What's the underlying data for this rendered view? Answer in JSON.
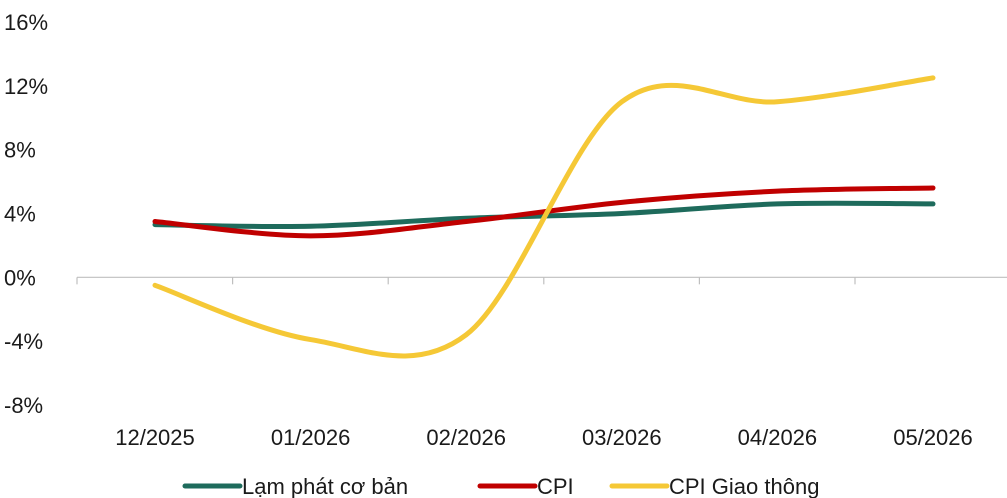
{
  "chart_data": {
    "type": "line",
    "title": "",
    "xlabel": "",
    "ylabel": "",
    "categories": [
      "12/2025",
      "01/2026",
      "02/2026",
      "03/2026",
      "04/2026",
      "05/2026"
    ],
    "ylim": [
      -8,
      16
    ],
    "y_ticks": [
      -8,
      -4,
      0,
      4,
      8,
      12,
      16
    ],
    "y_tick_labels": [
      "-8%",
      "-4%",
      "0%",
      "4%",
      "8%",
      "12%",
      "16%"
    ],
    "grid": false,
    "legend_position": "bottom",
    "smooth": true,
    "series": [
      {
        "name": "Lạm phát cơ bản",
        "color": "#1e6b5c",
        "values": [
          3.3,
          3.2,
          3.7,
          4.0,
          4.6,
          4.6
        ]
      },
      {
        "name": "CPI",
        "color": "#c00000",
        "values": [
          3.5,
          2.6,
          3.5,
          4.7,
          5.4,
          5.6
        ]
      },
      {
        "name": "CPI Giao thông",
        "color": "#f5c836",
        "values": [
          -0.5,
          -3.9,
          -3.6,
          11.0,
          11.0,
          12.5
        ]
      }
    ]
  }
}
